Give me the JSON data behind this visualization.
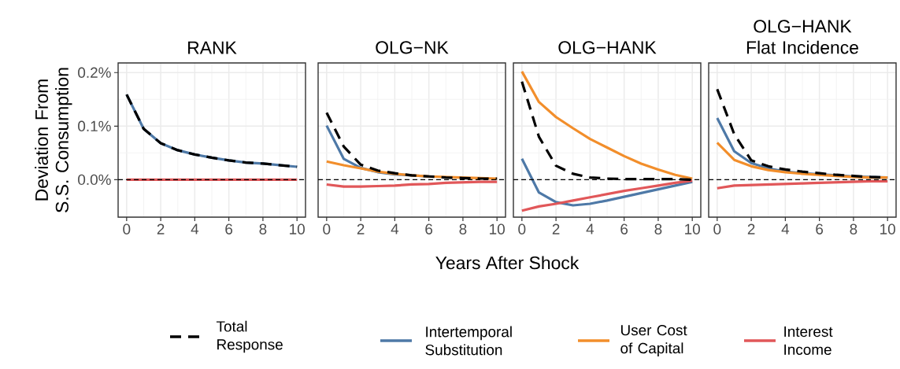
{
  "chart_data": [
    {
      "type": "line",
      "title": "RANK",
      "ylabel": "Deviation From S.S. Consumption",
      "legend": "bottom",
      "grid": true,
      "x": [
        0,
        1,
        2,
        3,
        4,
        5,
        6,
        7,
        8,
        9,
        10
      ],
      "xlim": [
        -0.5,
        10.5
      ],
      "ylim": [
        -0.07,
        0.218
      ],
      "xticks": [
        0,
        2,
        4,
        6,
        8,
        10
      ],
      "yticks": [
        {
          "value": 0,
          "label": "0.0%"
        },
        {
          "value": 0.1,
          "label": "0.1%"
        },
        {
          "value": 0.2,
          "label": "0.2%"
        }
      ],
      "ref_lines": [
        {
          "axis": "y",
          "value": 0,
          "color": "#000000",
          "line_style": "dashed"
        }
      ],
      "series": [
        {
          "name": "Total Response",
          "color": "#000000",
          "line_style": "dashed",
          "values": [
            0.159,
            0.095,
            0.068,
            0.055,
            0.047,
            0.041,
            0.036,
            0.032,
            0.03,
            0.027,
            0.024
          ]
        },
        {
          "name": "Intertemporal Substitution",
          "color": "#4e79a7",
          "line_style": "solid",
          "values": [
            0.159,
            0.095,
            0.068,
            0.055,
            0.047,
            0.041,
            0.036,
            0.032,
            0.03,
            0.027,
            0.024
          ]
        },
        {
          "name": "User Cost of Capital",
          "color": "#f28e2b",
          "line_style": "solid",
          "values": [
            null,
            null,
            null,
            null,
            null,
            null,
            null,
            null,
            null,
            null,
            null
          ]
        },
        {
          "name": "Interest Income",
          "color": "#e15759",
          "line_style": "solid",
          "values": [
            0,
            0,
            0,
            0,
            0,
            0,
            0,
            0,
            0,
            0,
            0
          ]
        }
      ]
    },
    {
      "type": "line",
      "title": "OLG−NK",
      "xlabel": "Years After Shock",
      "grid": true,
      "tick_labels": "x",
      "x": [
        0,
        1,
        2,
        3,
        4,
        5,
        6,
        7,
        8,
        9,
        10
      ],
      "xlim": [
        -0.5,
        10.5
      ],
      "ylim": [
        -0.07,
        0.218
      ],
      "xticks": [
        0,
        2,
        4,
        6,
        8,
        10
      ],
      "yticks": [
        0,
        0.1,
        0.2
      ],
      "ref_lines": [
        {
          "axis": "y",
          "value": 0,
          "color": "#000000",
          "line_style": "dashed"
        }
      ],
      "series": [
        {
          "color": "#000000",
          "line_style": "dashed",
          "values": [
            0.125,
            0.062,
            0.028,
            0.017,
            0.012,
            0.008,
            0.006,
            0.004,
            0.003,
            0.002,
            0.002
          ]
        },
        {
          "color": "#4e79a7",
          "line_style": "solid",
          "values": [
            0.101,
            0.039,
            0.022,
            0.014,
            0.01,
            0.008,
            0.006,
            null,
            null,
            null,
            null
          ]
        },
        {
          "color": "#f28e2b",
          "line_style": "solid",
          "values": [
            0.034,
            0.027,
            0.021,
            0.015,
            0.011,
            0.008,
            0.006,
            0.005,
            0.004,
            0.003,
            0.002
          ]
        },
        {
          "color": "#e15759",
          "line_style": "solid",
          "values": [
            -0.009,
            -0.013,
            -0.013,
            -0.012,
            -0.011,
            -0.009,
            -0.008,
            -0.006,
            -0.005,
            -0.004,
            -0.004
          ]
        }
      ]
    },
    {
      "type": "line",
      "title": "OLG−HANK",
      "grid": true,
      "tick_labels": "x",
      "x": [
        0,
        1,
        2,
        3,
        4,
        5,
        6,
        7,
        8,
        9,
        10
      ],
      "xlim": [
        -0.5,
        10.5
      ],
      "ylim": [
        -0.07,
        0.218
      ],
      "xticks": [
        0,
        2,
        4,
        6,
        8,
        10
      ],
      "yticks": [
        0,
        0.1,
        0.2
      ],
      "ref_lines": [
        {
          "axis": "y",
          "value": 0,
          "color": "#000000",
          "line_style": "dashed"
        }
      ],
      "series": [
        {
          "color": "#000000",
          "line_style": "dashed",
          "values": [
            0.183,
            0.08,
            0.026,
            0.011,
            0.004,
            0.002,
            0.001,
            0.001,
            0.001,
            0.001,
            0.0
          ]
        },
        {
          "color": "#4e79a7",
          "line_style": "solid",
          "values": [
            0.039,
            -0.024,
            -0.042,
            -0.048,
            -0.045,
            -0.039,
            -0.032,
            -0.025,
            -0.018,
            -0.011,
            -0.004
          ]
        },
        {
          "color": "#f28e2b",
          "line_style": "solid",
          "values": [
            0.202,
            0.145,
            0.117,
            0.096,
            0.076,
            0.06,
            0.044,
            0.03,
            0.019,
            0.009,
            0.002
          ]
        },
        {
          "color": "#e15759",
          "line_style": "solid",
          "values": [
            -0.058,
            -0.05,
            -0.045,
            -0.039,
            -0.033,
            -0.027,
            -0.021,
            -0.016,
            -0.011,
            -0.006,
            -0.002
          ]
        }
      ]
    },
    {
      "type": "line",
      "title": "OLG−HANK Flat Incidence",
      "grid": true,
      "tick_labels": "x",
      "x": [
        0,
        1,
        2,
        3,
        4,
        5,
        6,
        7,
        8,
        9,
        10
      ],
      "xlim": [
        -0.5,
        10.5
      ],
      "ylim": [
        -0.07,
        0.218
      ],
      "xticks": [
        0,
        2,
        4,
        6,
        8,
        10
      ],
      "yticks": [
        0,
        0.1,
        0.2
      ],
      "ref_lines": [
        {
          "axis": "y",
          "value": 0,
          "color": "#000000",
          "line_style": "dashed"
        }
      ],
      "series": [
        {
          "color": "#000000",
          "line_style": "dashed",
          "values": [
            0.169,
            0.085,
            0.036,
            0.025,
            0.019,
            0.015,
            0.012,
            0.009,
            0.007,
            0.005,
            0.004
          ]
        },
        {
          "color": "#4e79a7",
          "line_style": "solid",
          "values": [
            0.115,
            0.053,
            0.031,
            0.021,
            0.015,
            0.012,
            0.01,
            0.008,
            0.006,
            0.005,
            0.004
          ]
        },
        {
          "color": "#f28e2b",
          "line_style": "solid",
          "values": [
            0.069,
            0.037,
            0.025,
            0.018,
            0.014,
            0.011,
            0.009,
            0.007,
            0.005,
            0.004,
            0.004
          ]
        },
        {
          "color": "#e15759",
          "line_style": "solid",
          "values": [
            -0.016,
            -0.011,
            -0.01,
            -0.009,
            -0.008,
            -0.007,
            -0.006,
            -0.005,
            -0.004,
            -0.003,
            -0.003
          ]
        }
      ]
    }
  ]
}
